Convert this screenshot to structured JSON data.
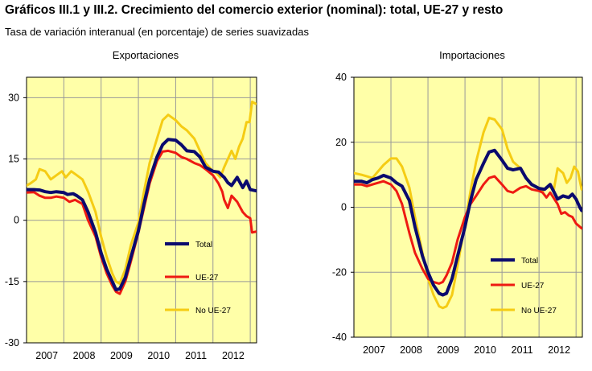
{
  "header": {
    "title": "Gráficos III.1 y III.2. Crecimiento del comercio exterior (nominal): total, UE-27 y resto",
    "subtitle": "Tasa de variación interanual (en porcentaje) de series suavizadas"
  },
  "colors": {
    "plot_bg": "#ffffa8",
    "grid": "#999999",
    "total": "#0a0a6e",
    "ue27": "#ee1a12",
    "no_ue27": "#f5cc14"
  },
  "chart_data": [
    {
      "type": "line",
      "title": "Exportaciones",
      "xlabel": "",
      "ylabel": "",
      "x_range": [
        2006.5,
        2012.67
      ],
      "ylim": [
        -30,
        35
      ],
      "yticks": [
        30,
        15,
        0,
        -15,
        -30
      ],
      "ytick_labels": [
        "30",
        "15",
        "0",
        "-15",
        "-30"
      ],
      "xtick_labels": [
        "2007",
        "2008",
        "2009",
        "2010",
        "2011",
        "2012"
      ],
      "xtick_positions": [
        2007,
        2008,
        2009,
        2010,
        2011,
        2012
      ],
      "year_boundaries": [
        2007.5,
        2008.5,
        2009.5,
        2010.5,
        2011.5,
        2012.5
      ],
      "legend_position": "center-right",
      "series": [
        {
          "name": "Total",
          "key": "total",
          "x": [
            2006.5,
            2006.7,
            2006.85,
            2007.0,
            2007.15,
            2007.3,
            2007.5,
            2007.6,
            2007.75,
            2007.85,
            2008.0,
            2008.15,
            2008.35,
            2008.5,
            2008.65,
            2008.8,
            2008.9,
            2009.0,
            2009.15,
            2009.3,
            2009.5,
            2009.65,
            2009.8,
            2010.0,
            2010.15,
            2010.3,
            2010.5,
            2010.65,
            2010.8,
            2011.0,
            2011.15,
            2011.3,
            2011.5,
            2011.65,
            2011.8,
            2011.9,
            2012.0,
            2012.15,
            2012.3,
            2012.4,
            2012.5,
            2012.65
          ],
          "y": [
            7.5,
            7.5,
            7.4,
            7.0,
            6.8,
            7.0,
            6.8,
            6.3,
            6.5,
            6.0,
            5.0,
            2.0,
            -3.0,
            -8.0,
            -12.0,
            -15.0,
            -17.0,
            -16.8,
            -14.0,
            -9.0,
            -2.5,
            4.0,
            10.0,
            15.5,
            18.5,
            19.8,
            19.6,
            18.5,
            17.0,
            16.8,
            15.5,
            13.0,
            12.0,
            11.8,
            10.5,
            9.2,
            8.5,
            10.5,
            8.0,
            9.6,
            7.5,
            7.2
          ]
        },
        {
          "name": "UE-27",
          "key": "ue27",
          "x": [
            2006.5,
            2006.7,
            2006.85,
            2007.0,
            2007.15,
            2007.3,
            2007.5,
            2007.65,
            2007.8,
            2008.0,
            2008.15,
            2008.35,
            2008.5,
            2008.65,
            2008.8,
            2008.9,
            2009.0,
            2009.15,
            2009.3,
            2009.5,
            2009.65,
            2009.8,
            2010.0,
            2010.15,
            2010.3,
            2010.5,
            2010.65,
            2010.8,
            2011.0,
            2011.15,
            2011.3,
            2011.5,
            2011.65,
            2011.75,
            2011.8,
            2011.9,
            2012.0,
            2012.15,
            2012.3,
            2012.4,
            2012.5,
            2012.55,
            2012.65
          ],
          "y": [
            6.8,
            6.9,
            6.0,
            5.5,
            5.5,
            5.8,
            5.5,
            4.5,
            5.0,
            4.0,
            0.0,
            -4.0,
            -9.0,
            -13.0,
            -16.0,
            -17.5,
            -18.0,
            -15.0,
            -10.0,
            -3.0,
            3.0,
            9.0,
            14.5,
            16.8,
            17.0,
            16.5,
            15.5,
            15.0,
            14.0,
            13.5,
            12.5,
            11.0,
            9.0,
            7.0,
            5.0,
            3.0,
            6.0,
            4.5,
            2.0,
            1.0,
            0.5,
            -3.0,
            -2.8
          ]
        },
        {
          "name": "No UE-27",
          "key": "no_ue27",
          "x": [
            2006.5,
            2006.6,
            2006.75,
            2006.85,
            2007.0,
            2007.15,
            2007.3,
            2007.45,
            2007.55,
            2007.7,
            2007.85,
            2008.0,
            2008.15,
            2008.35,
            2008.5,
            2008.65,
            2008.8,
            2008.9,
            2009.0,
            2009.15,
            2009.3,
            2009.5,
            2009.65,
            2009.8,
            2010.0,
            2010.15,
            2010.3,
            2010.5,
            2010.65,
            2010.8,
            2011.0,
            2011.15,
            2011.3,
            2011.5,
            2011.6,
            2011.7,
            2011.8,
            2011.9,
            2012.0,
            2012.1,
            2012.2,
            2012.3,
            2012.4,
            2012.48,
            2012.55,
            2012.65
          ],
          "y": [
            8.5,
            9.0,
            10.0,
            12.5,
            12.0,
            10.0,
            11.0,
            12.0,
            10.5,
            12.0,
            11.0,
            10.0,
            7.0,
            2.0,
            -4.0,
            -9.0,
            -13.0,
            -15.0,
            -15.5,
            -12.0,
            -6.0,
            -0.5,
            7.0,
            14.0,
            20.0,
            24.5,
            25.8,
            24.5,
            23.0,
            22.0,
            20.0,
            17.0,
            14.0,
            12.0,
            11.5,
            10.5,
            13.0,
            15.0,
            17.0,
            15.0,
            18.0,
            20.0,
            24.0,
            24.0,
            29.0,
            28.5
          ]
        }
      ]
    },
    {
      "type": "line",
      "title": "Importaciones",
      "xlabel": "",
      "ylabel": "",
      "x_range": [
        2006.5,
        2012.67
      ],
      "ylim": [
        -40,
        40
      ],
      "yticks": [
        40,
        20,
        0,
        -20,
        -40
      ],
      "ytick_labels": [
        "40",
        "20",
        "0",
        "-20",
        "-40"
      ],
      "xtick_labels": [
        "2007",
        "2008",
        "2009",
        "2010",
        "2011",
        "2012"
      ],
      "xtick_positions": [
        2007,
        2008,
        2009,
        2010,
        2011,
        2012
      ],
      "year_boundaries": [
        2007.5,
        2008.5,
        2009.5,
        2010.5,
        2011.5,
        2012.5
      ],
      "legend_position": "bottom-right",
      "series": [
        {
          "name": "Total",
          "key": "total",
          "x": [
            2006.5,
            2006.7,
            2006.85,
            2007.0,
            2007.15,
            2007.3,
            2007.5,
            2007.65,
            2007.8,
            2008.0,
            2008.15,
            2008.35,
            2008.5,
            2008.65,
            2008.8,
            2008.9,
            2009.0,
            2009.15,
            2009.3,
            2009.5,
            2009.65,
            2009.8,
            2010.0,
            2010.15,
            2010.3,
            2010.5,
            2010.65,
            2010.8,
            2011.0,
            2011.15,
            2011.3,
            2011.5,
            2011.65,
            2011.8,
            2012.0,
            2012.15,
            2012.3,
            2012.4,
            2012.5,
            2012.6,
            2012.65
          ],
          "y": [
            8.0,
            8.0,
            7.5,
            8.5,
            9.0,
            9.8,
            9.0,
            7.5,
            6.5,
            2.0,
            -6.0,
            -15.0,
            -20.0,
            -24.0,
            -26.5,
            -27.0,
            -26.5,
            -22.0,
            -15.0,
            -6.0,
            2.0,
            8.5,
            13.5,
            17.0,
            17.5,
            14.5,
            12.0,
            11.5,
            12.0,
            9.0,
            7.0,
            5.8,
            5.5,
            7.0,
            2.5,
            3.5,
            3.0,
            4.0,
            2.5,
            0.0,
            -1.0
          ]
        },
        {
          "name": "UE-27",
          "key": "ue27",
          "x": [
            2006.5,
            2006.7,
            2006.85,
            2007.0,
            2007.15,
            2007.3,
            2007.5,
            2007.65,
            2007.8,
            2008.0,
            2008.15,
            2008.35,
            2008.5,
            2008.65,
            2008.8,
            2008.9,
            2009.0,
            2009.15,
            2009.3,
            2009.5,
            2009.65,
            2009.8,
            2010.0,
            2010.15,
            2010.3,
            2010.5,
            2010.65,
            2010.8,
            2011.0,
            2011.15,
            2011.3,
            2011.5,
            2011.6,
            2011.7,
            2011.8,
            2012.0,
            2012.1,
            2012.2,
            2012.3,
            2012.4,
            2012.5,
            2012.65
          ],
          "y": [
            7.0,
            7.0,
            6.5,
            7.0,
            7.5,
            8.0,
            7.0,
            5.0,
            1.0,
            -8.0,
            -14.0,
            -19.0,
            -22.0,
            -23.0,
            -23.5,
            -23.0,
            -21.0,
            -17.0,
            -10.0,
            -3.0,
            1.0,
            3.5,
            7.0,
            9.0,
            9.5,
            7.0,
            5.0,
            4.5,
            6.0,
            6.5,
            5.5,
            5.0,
            4.5,
            3.0,
            4.5,
            1.0,
            -2.0,
            -1.5,
            -2.5,
            -3.0,
            -5.0,
            -6.5
          ]
        },
        {
          "name": "No UE-27",
          "key": "no_ue27",
          "x": [
            2006.5,
            2006.7,
            2006.85,
            2007.0,
            2007.15,
            2007.3,
            2007.5,
            2007.65,
            2007.8,
            2008.0,
            2008.15,
            2008.35,
            2008.5,
            2008.65,
            2008.8,
            2008.9,
            2009.0,
            2009.15,
            2009.3,
            2009.5,
            2009.65,
            2009.8,
            2010.0,
            2010.15,
            2010.3,
            2010.5,
            2010.65,
            2010.8,
            2011.0,
            2011.15,
            2011.3,
            2011.5,
            2011.6,
            2011.75,
            2011.9,
            2012.0,
            2012.15,
            2012.25,
            2012.35,
            2012.45,
            2012.55,
            2012.65
          ],
          "y": [
            10.5,
            10.0,
            9.5,
            9.0,
            11.0,
            13.0,
            15.0,
            15.0,
            12.5,
            6.0,
            -3.0,
            -14.0,
            -22.0,
            -27.0,
            -30.5,
            -31.0,
            -30.5,
            -27.0,
            -18.0,
            -5.0,
            5.0,
            14.0,
            23.0,
            27.5,
            27.0,
            24.0,
            18.0,
            14.0,
            12.0,
            9.0,
            7.0,
            6.0,
            5.0,
            6.5,
            5.5,
            12.0,
            10.5,
            7.5,
            9.0,
            12.5,
            11.0,
            5.5
          ]
        }
      ]
    }
  ]
}
